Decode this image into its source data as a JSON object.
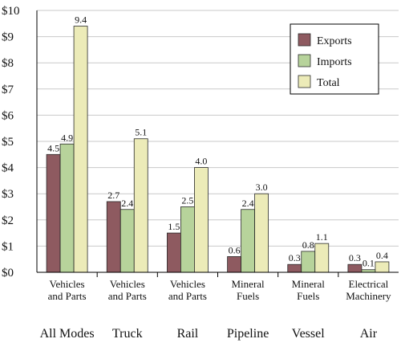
{
  "chart_data": {
    "type": "bar",
    "title": "",
    "xlabel": "",
    "ylabel": "",
    "ylim": [
      0,
      10
    ],
    "y_ticks": [
      "$0",
      "$1",
      "$2",
      "$3",
      "$4",
      "$5",
      "$6",
      "$7",
      "$8",
      "$9",
      "$10"
    ],
    "grid": true,
    "legend_position": "top-right",
    "categories": [
      "Vehicles and Parts",
      "Vehicles and Parts",
      "Vehicles and Parts",
      "Mineral Fuels",
      "Mineral Fuels",
      "Electrical Machinery"
    ],
    "category_lines": [
      [
        "Vehicles",
        "and Parts"
      ],
      [
        "Vehicles",
        "and Parts"
      ],
      [
        "Vehicles",
        "and Parts"
      ],
      [
        "Mineral",
        "Fuels"
      ],
      [
        "Mineral",
        "Fuels"
      ],
      [
        "Electrical",
        "Machinery"
      ]
    ],
    "groups": [
      "All Modes",
      "Truck",
      "Rail",
      "Pipeline",
      "Vessel",
      "Air"
    ],
    "series": [
      {
        "name": "Exports",
        "color": "#8e5a60",
        "values": [
          4.5,
          2.7,
          1.5,
          0.6,
          0.3,
          0.3
        ],
        "labels": [
          "4.5",
          "2.7",
          "1.5",
          "0.6",
          "0.3",
          "0.3"
        ]
      },
      {
        "name": "Imports",
        "color": "#b7d39b",
        "values": [
          4.9,
          2.4,
          2.5,
          2.4,
          0.8,
          0.1
        ],
        "labels": [
          "4.9",
          "2.4",
          "2.5",
          "2.4",
          "0.8",
          "0.1"
        ]
      },
      {
        "name": "Total",
        "color": "#ecebb8",
        "values": [
          9.4,
          5.1,
          4.0,
          3.0,
          1.1,
          0.4
        ],
        "labels": [
          "9.4",
          "5.1",
          "4.0",
          "3.0",
          "1.1",
          "0.4"
        ]
      }
    ]
  }
}
